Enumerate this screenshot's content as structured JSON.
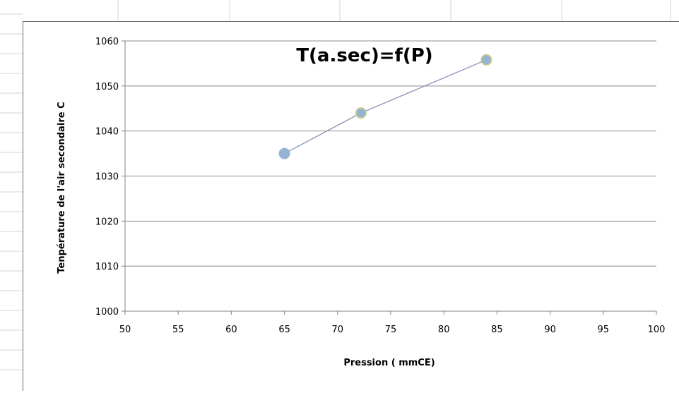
{
  "chart_data": {
    "type": "scatter",
    "title": "T(a.sec)=f(P)",
    "xlabel": "Pression ( mmCE)",
    "ylabel": "Tenpérature de l'air secondaire  C",
    "xlim": [
      50,
      100
    ],
    "ylim": [
      1000,
      1060
    ],
    "x_ticks": [
      50,
      55,
      60,
      65,
      70,
      75,
      80,
      85,
      90,
      95,
      100
    ],
    "y_ticks": [
      1000,
      1010,
      1020,
      1030,
      1040,
      1050,
      1060
    ],
    "x_tick_labels": [
      "50",
      "55",
      "60",
      "65",
      "70",
      "75",
      "80",
      "85",
      "90",
      "95",
      "100"
    ],
    "y_tick_labels": [
      "1000",
      "1010",
      "1020",
      "1030",
      "1040",
      "1050",
      "1060"
    ],
    "grid": "horizontal",
    "series": [
      {
        "x": [
          65,
          72.2,
          84
        ],
        "y": [
          1035,
          1044,
          1055.8
        ],
        "marker_color": "#95b3d7",
        "line_color": "#8a8fb8",
        "marker_edge_colors": [
          "#95b3d7",
          "#c3c98a",
          "#c3c98a"
        ]
      }
    ]
  }
}
